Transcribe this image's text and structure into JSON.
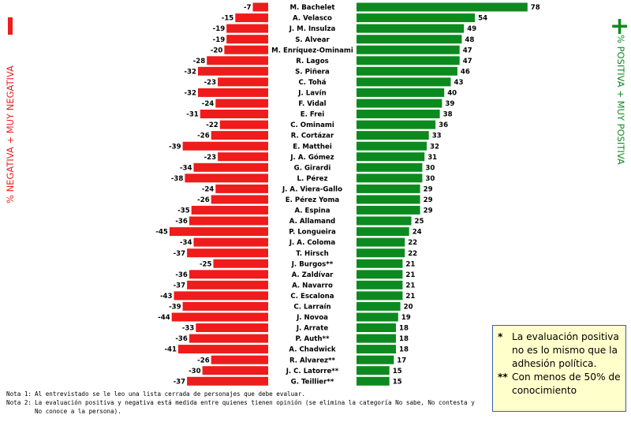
{
  "colors": {
    "negative": "#ee1c1c",
    "positive": "#0d8a1f"
  },
  "side_labels": {
    "negative_symbol": "—",
    "negative_text": "% NEGATIVA + MUY NEGATIVA",
    "positive_symbol": "+",
    "positive_text": "% POSITIVA + MUY POSITIVA"
  },
  "chart_data": {
    "type": "bar",
    "orientation": "horizontal-diverging",
    "title": "",
    "categories": [
      "M. Bachelet",
      "A. Velasco",
      "J. M. Insulza",
      "S. Alvear",
      "M. Enríquez-Ominami",
      "R. Lagos",
      "S. Piñera",
      "C. Tohá",
      "J. Lavín",
      "F. Vidal",
      "E. Frei",
      "C. Ominami",
      "R. Cortázar",
      "E. Matthei",
      "J. A. Gómez",
      "G. Girardi",
      "L. Pérez",
      "J. A. Viera-Gallo",
      "E. Pérez Yoma",
      "A. Espina",
      "A. Allamand",
      "P. Longueira",
      "J. A. Coloma",
      "T. Hirsch",
      "J. Burgos**",
      "A. Zaldívar",
      "A. Navarro",
      "C. Escalona",
      "C. Larraín",
      "J. Novoa",
      "J. Arrate",
      "P. Auth**",
      "A. Chadwick",
      "R. Alvarez**",
      "J. C. Latorre**",
      "G. Teillier**"
    ],
    "series": [
      {
        "name": "Negativa + muy negativa",
        "values": [
          -7,
          -15,
          -19,
          -19,
          -20,
          -28,
          -32,
          -23,
          -32,
          -24,
          -31,
          -22,
          -26,
          -39,
          -23,
          -34,
          -38,
          -24,
          -26,
          -35,
          -36,
          -45,
          -34,
          -37,
          -25,
          -36,
          -37,
          -43,
          -39,
          -44,
          -33,
          -36,
          -41,
          -26,
          -30,
          -37
        ]
      },
      {
        "name": "Positiva + muy positiva",
        "values": [
          78,
          54,
          49,
          48,
          47,
          47,
          46,
          43,
          40,
          39,
          38,
          36,
          33,
          32,
          31,
          30,
          30,
          29,
          29,
          29,
          25,
          24,
          22,
          22,
          21,
          21,
          21,
          21,
          20,
          19,
          18,
          18,
          18,
          17,
          15,
          15
        ]
      }
    ]
  },
  "notes": [
    {
      "key": "Nota 1:",
      "text": "Al entrevistado se le leo una lista cerrada de personajes que debe evaluar."
    },
    {
      "key": "Nota 2:",
      "text": "La evaluación positiva y negativa está medida entre quienes tienen opinión (se elimina la categoría No sabe, No contesta y No conoce a la persona)."
    }
  ],
  "callout": [
    {
      "marker": "*",
      "text": "La evaluación positiva no es lo mismo que la adhesión política."
    },
    {
      "marker": "**",
      "text": "Con menos de 50% de conocimiento"
    }
  ]
}
